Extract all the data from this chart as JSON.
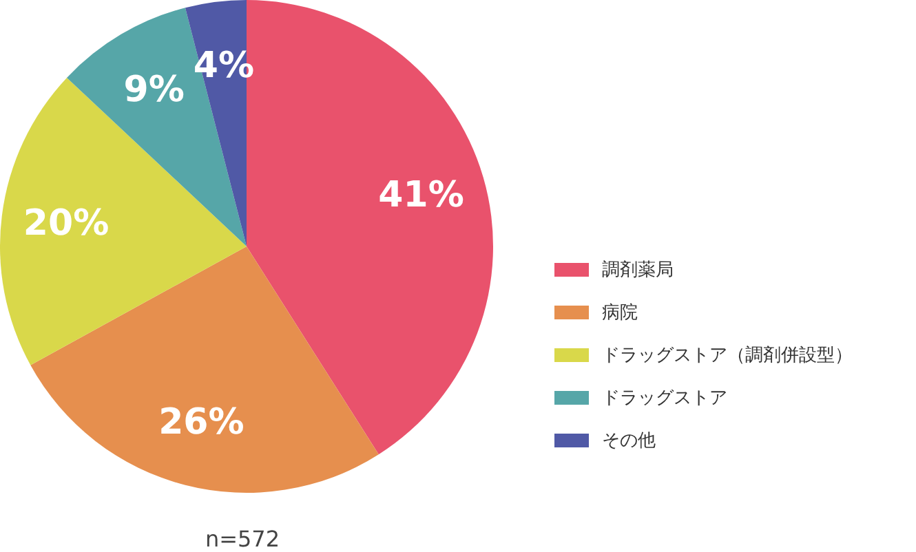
{
  "chart_data": {
    "type": "pie",
    "categories": [
      "調剤薬局",
      "病院",
      "ドラッグストア（調剤併設型）",
      "ドラッグストア",
      "その他"
    ],
    "values": [
      41,
      26,
      20,
      9,
      4
    ],
    "colors": [
      "#e9526c",
      "#e68f4e",
      "#d9d84a",
      "#56a6a8",
      "#5059a6"
    ],
    "value_labels": [
      "41%",
      "26%",
      "20%",
      "9%",
      "4%"
    ],
    "legend": "right",
    "annotations": [
      "n=572"
    ]
  }
}
